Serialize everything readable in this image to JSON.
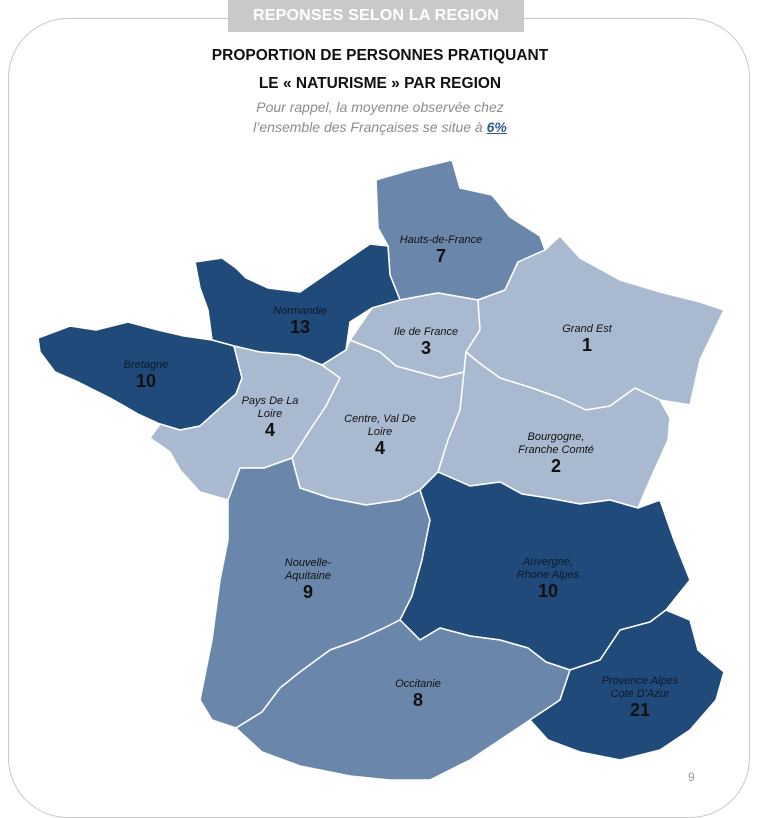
{
  "banner": "REPONSES SELON  LA REGION",
  "title_line1": "PROPORTION DE PERSONNES PRATIQUANT",
  "title_line2": "LE « NATURISME »  PAR REGION",
  "note_line1": "Pour rappel, la moyenne observée chez",
  "note_line2_prefix": "l’ensemble des Françaises se situe à ",
  "note_avg": "6%",
  "page_number": "9",
  "colors": {
    "dark": "#1f4a7a",
    "medium": "#6a87ab",
    "light": "#a9bad0",
    "banner_bg": "#c9c9c9"
  },
  "regions": [
    {
      "id": "hauts-de-france",
      "name_lines": [
        "Hauts-de-France"
      ],
      "value": "7",
      "shade": "medium"
    },
    {
      "id": "normandie",
      "name_lines": [
        "Normandie"
      ],
      "value": "13",
      "shade": "dark"
    },
    {
      "id": "ile-de-france",
      "name_lines": [
        "Ile de France"
      ],
      "value": "3",
      "shade": "light"
    },
    {
      "id": "grand-est",
      "name_lines": [
        "Grand Est"
      ],
      "value": "1",
      "shade": "light"
    },
    {
      "id": "bretagne",
      "name_lines": [
        "Bretagne"
      ],
      "value": "10",
      "shade": "dark"
    },
    {
      "id": "pays-de-la-loire",
      "name_lines": [
        "Pays De La",
        "Loire"
      ],
      "value": "4",
      "shade": "light"
    },
    {
      "id": "centre-val-de-loire",
      "name_lines": [
        "Centre, Val De",
        "Loire"
      ],
      "value": "4",
      "shade": "light"
    },
    {
      "id": "bourgogne-franche-comte",
      "name_lines": [
        "Bourgogne,",
        "Franche Comté"
      ],
      "value": "2",
      "shade": "light"
    },
    {
      "id": "nouvelle-aquitaine",
      "name_lines": [
        "Nouvelle-",
        "Aquitaine"
      ],
      "value": "9",
      "shade": "medium"
    },
    {
      "id": "auvergne-rhone-alpes",
      "name_lines": [
        "Auvergne,",
        "Rhone Alpes"
      ],
      "value": "10",
      "shade": "dark"
    },
    {
      "id": "occitanie",
      "name_lines": [
        "Occitanie"
      ],
      "value": "8",
      "shade": "medium"
    },
    {
      "id": "paca",
      "name_lines": [
        "Provence Alpes",
        "Cote D'Azur"
      ],
      "value": "21",
      "shade": "dark"
    }
  ]
}
